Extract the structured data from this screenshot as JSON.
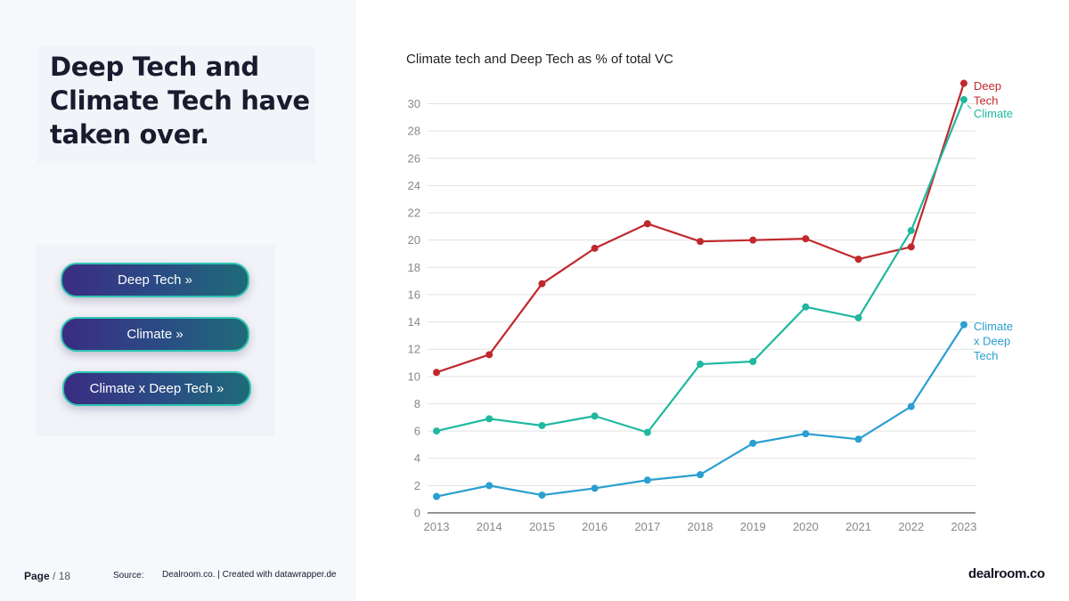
{
  "slide": {
    "headline": "Deep Tech and Climate Tech have taken over.",
    "buttons": [
      "Deep Tech »",
      "Climate »",
      "Climate x Deep Tech »"
    ]
  },
  "footer": {
    "page_label": "Page",
    "page_number": "/ 18",
    "source_label": "Source:",
    "source_text": "Dealroom.co. | Created with datawrapper.de",
    "brand": "dealroom.co"
  },
  "colors": {
    "deep_tech": "#c0282d",
    "climate": "#1fb8a0",
    "climate_x_deep_tech": "#2a9fd0",
    "grid": "#e2e2e2",
    "axis_text": "#888888"
  },
  "chart_data": {
    "type": "line",
    "title": "Climate tech and Deep Tech as % of total VC",
    "x": [
      2013,
      2014,
      2015,
      2016,
      2017,
      2018,
      2019,
      2020,
      2021,
      2022,
      2023
    ],
    "ylim": [
      0,
      30
    ],
    "yticks": [
      0,
      2,
      4,
      6,
      8,
      10,
      12,
      14,
      16,
      18,
      20,
      22,
      24,
      26,
      28,
      30
    ],
    "grid": true,
    "legend": "direct labels at line ends",
    "series": [
      {
        "name": "Deep Tech",
        "color": "#c0282d",
        "values": [
          10.3,
          11.6,
          16.8,
          19.4,
          21.2,
          19.9,
          20.0,
          20.1,
          18.6,
          19.5,
          31.5
        ]
      },
      {
        "name": "Climate",
        "color": "#1fb8a0",
        "values": [
          6.0,
          6.9,
          6.4,
          7.1,
          5.9,
          10.9,
          11.1,
          15.1,
          14.3,
          20.7,
          30.3
        ]
      },
      {
        "name": "Climate x Deep Tech",
        "color": "#2a9fd0",
        "values": [
          1.2,
          2.0,
          1.3,
          1.8,
          2.4,
          2.8,
          5.1,
          5.8,
          5.4,
          7.8,
          13.8
        ]
      }
    ]
  }
}
